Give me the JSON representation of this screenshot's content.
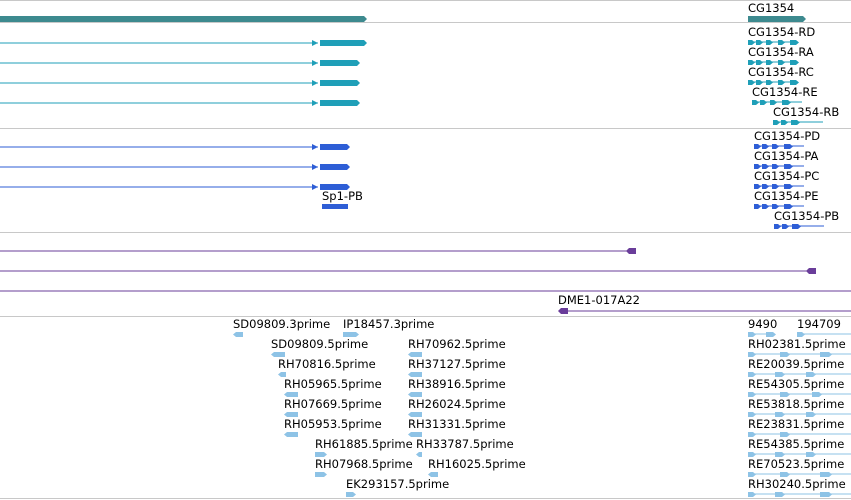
{
  "colors": {
    "gene": "#3d8a8f",
    "mrna": "#1f9fb8",
    "protein": "#2e5ed6",
    "clone": "#6a3d9a",
    "est": "#8ec3e6",
    "separator": "#c8c8c8"
  },
  "tracks": {
    "gene_labels": [
      "CG1354"
    ],
    "mrna_labels": [
      "CG1354-RD",
      "CG1354-RA",
      "CG1354-RC",
      "CG1354-RE",
      "CG1354-RB"
    ],
    "protein_labels": [
      "Sp1-PB",
      "CG1354-PD",
      "CG1354-PA",
      "CG1354-PC",
      "CG1354-PE",
      "CG1354-PB"
    ],
    "clone_labels": [
      "DME1-017A22"
    ],
    "est_labels": [
      "SD09809.3prime",
      "IP18457.3prime",
      "9490",
      "194709",
      "SD09809.5prime",
      "RH70962.5prime",
      "RH02381.5prime",
      "RH70816.5prime",
      "RH37127.5prime",
      "RE20039.5prime",
      "RH05965.5prime",
      "RH38916.5prime",
      "RE54305.5prime",
      "RH07669.5prime",
      "RH26024.5prime",
      "RE53818.5prime",
      "RH05953.5prime",
      "RH31331.5prime",
      "RE23831.5prime",
      "RH61885.5prime",
      "RH33787.5prime",
      "RE54385.5prime",
      "RH07968.5prime",
      "RH16025.5prime",
      "RE70523.5prime",
      "EK293157.5prime",
      "RH30240.5prime"
    ]
  }
}
